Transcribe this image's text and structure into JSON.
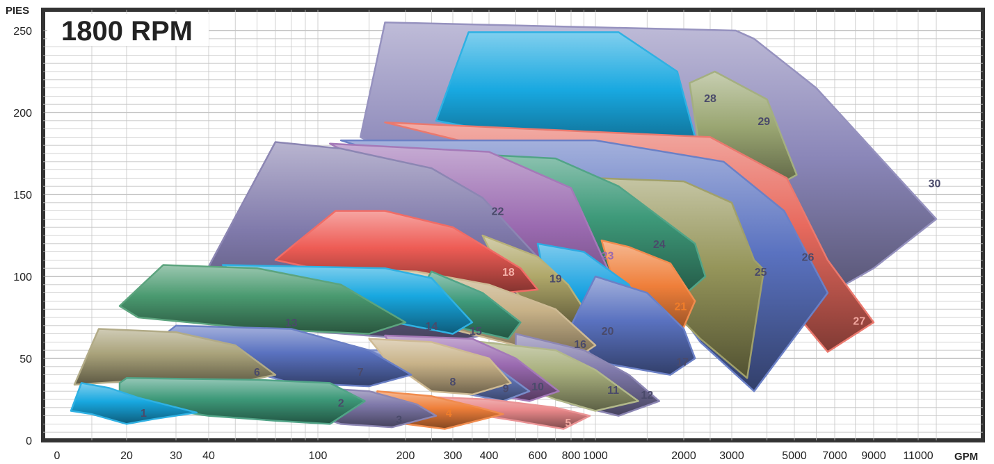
{
  "title": "1800 RPM",
  "chart_data": {
    "type": "area",
    "title": "1800 RPM",
    "ylabel": "PIES",
    "xlabel": "GPM",
    "ylim": [
      0,
      255
    ],
    "grid": true,
    "x_ticks": [
      {
        "label": "0"
      },
      {
        "label": "20"
      },
      {
        "label": "30"
      },
      {
        "label": "40"
      },
      {
        "label": "100"
      },
      {
        "label": "200"
      },
      {
        "label": "300"
      },
      {
        "label": "400"
      },
      {
        "label": "600"
      },
      {
        "label": "800"
      },
      {
        "label": "1000"
      },
      {
        "label": "2000"
      },
      {
        "label": "3000"
      },
      {
        "label": "5000"
      },
      {
        "label": "7000"
      },
      {
        "label": "9000"
      },
      {
        "label": "11000"
      }
    ],
    "y_ticks": [
      0,
      50,
      100,
      150,
      200,
      250
    ],
    "series": [
      {
        "name": "30",
        "color": "#8a86b8",
        "label_pos": [
          11900,
          157
        ],
        "points": [
          [
            140,
            185
          ],
          [
            170,
            255
          ],
          [
            3100,
            250
          ],
          [
            3600,
            245
          ],
          [
            6000,
            215
          ],
          [
            12000,
            135
          ],
          [
            9000,
            105
          ],
          [
            6000,
            85
          ],
          [
            3500,
            70
          ]
        ]
      },
      {
        "name": "29",
        "color": "#9aa672",
        "label_pos": [
          3900,
          195
        ],
        "points": [
          [
            2100,
            218
          ],
          [
            2600,
            225
          ],
          [
            4000,
            208
          ],
          [
            5100,
            162
          ],
          [
            3800,
            150
          ],
          [
            2300,
            175
          ]
        ]
      },
      {
        "name": "28",
        "color": "#18a8e0",
        "label_pos": [
          2500,
          209
        ],
        "points": [
          [
            260,
            195
          ],
          [
            340,
            249
          ],
          [
            1200,
            249
          ],
          [
            1900,
            225
          ],
          [
            2200,
            185
          ],
          [
            1600,
            170
          ]
        ]
      },
      {
        "name": "27",
        "color": "#e86a5e",
        "label_pos": [
          8200,
          73
        ],
        "points": [
          [
            170,
            194
          ],
          [
            2500,
            185
          ],
          [
            4700,
            160
          ],
          [
            6600,
            110
          ],
          [
            9000,
            72
          ],
          [
            6600,
            54
          ],
          [
            5500,
            70
          ],
          [
            4000,
            100
          ],
          [
            1500,
            155
          ]
        ]
      },
      {
        "name": "26",
        "color": "#5a72c0",
        "label_pos": [
          5600,
          112
        ],
        "points": [
          [
            120,
            183
          ],
          [
            1000,
            183
          ],
          [
            2800,
            170
          ],
          [
            4600,
            140
          ],
          [
            6600,
            90
          ],
          [
            3600,
            30
          ],
          [
            2300,
            60
          ],
          [
            1200,
            130
          ]
        ]
      },
      {
        "name": "25",
        "color": "#95955a",
        "label_pos": [
          3800,
          103
        ],
        "points": [
          [
            1000,
            160
          ],
          [
            2000,
            158
          ],
          [
            3000,
            145
          ],
          [
            3600,
            110
          ],
          [
            3900,
            104
          ],
          [
            3400,
            38
          ],
          [
            2300,
            62
          ],
          [
            1500,
            95
          ]
        ]
      },
      {
        "name": "24",
        "color": "#3e9a7a",
        "label_pos": [
          1650,
          120
        ],
        "points": [
          [
            140,
            178
          ],
          [
            700,
            172
          ],
          [
            1200,
            155
          ],
          [
            2200,
            120
          ],
          [
            2400,
            100
          ],
          [
            1900,
            85
          ],
          [
            1300,
            90
          ],
          [
            700,
            135
          ]
        ]
      },
      {
        "name": "23",
        "color": "#9a6ab0",
        "label_pos": [
          1100,
          113
        ],
        "points": [
          [
            110,
            181
          ],
          [
            400,
            176
          ],
          [
            800,
            154
          ],
          [
            1200,
            90
          ],
          [
            1000,
            68
          ],
          [
            700,
            90
          ],
          [
            400,
            130
          ]
        ]
      },
      {
        "name": "22",
        "color": "#7f79aa",
        "label_pos": [
          430,
          140
        ],
        "points": [
          [
            40,
            106
          ],
          [
            70,
            182
          ],
          [
            120,
            178
          ],
          [
            250,
            166
          ],
          [
            380,
            148
          ],
          [
            700,
            100
          ],
          [
            600,
            72
          ],
          [
            300,
            60
          ],
          [
            50,
            70
          ]
        ]
      },
      {
        "name": "21",
        "color": "#ef7f3a",
        "label_pos": [
          1950,
          82
        ],
        "points": [
          [
            1050,
            122
          ],
          [
            1300,
            118
          ],
          [
            1800,
            108
          ],
          [
            2200,
            85
          ],
          [
            1900,
            60
          ],
          [
            1300,
            65
          ]
        ]
      },
      {
        "name": "20",
        "color": "#14a0e0",
        "label_pos": [
          1100,
          67
        ],
        "points": [
          [
            600,
            120
          ],
          [
            900,
            115
          ],
          [
            1300,
            95
          ],
          [
            1500,
            70
          ],
          [
            1200,
            50
          ],
          [
            900,
            60
          ],
          [
            650,
            90
          ]
        ]
      },
      {
        "name": "19",
        "color": "#b0a86a",
        "label_pos": [
          700,
          99
        ],
        "points": [
          [
            380,
            125
          ],
          [
            600,
            112
          ],
          [
            780,
            95
          ],
          [
            900,
            80
          ],
          [
            800,
            70
          ],
          [
            600,
            75
          ],
          [
            450,
            100
          ]
        ]
      },
      {
        "name": "18",
        "color": "#ee5c55",
        "label_pos": [
          470,
          103
        ],
        "points": [
          [
            80,
            118
          ],
          [
            115,
            140
          ],
          [
            170,
            140
          ],
          [
            300,
            130
          ],
          [
            520,
            105
          ],
          [
            600,
            92
          ],
          [
            450,
            90
          ],
          [
            180,
            95
          ],
          [
            70,
            110
          ]
        ]
      },
      {
        "name": "17",
        "color": "#5a72c0",
        "label_pos": [
          1980,
          48
        ],
        "points": [
          [
            1000,
            100
          ],
          [
            1500,
            90
          ],
          [
            2000,
            68
          ],
          [
            2200,
            50
          ],
          [
            1800,
            40
          ],
          [
            1000,
            48
          ],
          [
            800,
            70
          ]
        ]
      },
      {
        "name": "16",
        "color": "#c8b288",
        "label_pos": [
          870,
          59
        ],
        "points": [
          [
            100,
            105
          ],
          [
            220,
            103
          ],
          [
            400,
            95
          ],
          [
            700,
            80
          ],
          [
            1000,
            58
          ],
          [
            800,
            48
          ],
          [
            500,
            58
          ],
          [
            200,
            75
          ]
        ]
      },
      {
        "name": "15",
        "color": "#3e9a7a",
        "label_pos": [
          360,
          67
        ],
        "points": [
          [
            250,
            103
          ],
          [
            380,
            90
          ],
          [
            520,
            72
          ],
          [
            470,
            62
          ],
          [
            330,
            68
          ],
          [
            220,
            88
          ]
        ]
      },
      {
        "name": "14",
        "color": "#18a8e0",
        "label_pos": [
          250,
          70
        ],
        "points": [
          [
            45,
            107
          ],
          [
            170,
            105
          ],
          [
            250,
            99
          ],
          [
            350,
            72
          ],
          [
            300,
            65
          ],
          [
            150,
            75
          ],
          [
            60,
            95
          ]
        ]
      },
      {
        "name": "13",
        "color": "#4a9a70",
        "label_pos": [
          80,
          72
        ],
        "points": [
          [
            18,
            82
          ],
          [
            27,
            107
          ],
          [
            60,
            105
          ],
          [
            120,
            95
          ],
          [
            200,
            72
          ],
          [
            150,
            65
          ],
          [
            60,
            68
          ],
          [
            22,
            75
          ]
        ]
      },
      {
        "name": "12",
        "color": "#7f79aa",
        "label_pos": [
          1500,
          28
        ],
        "points": [
          [
            500,
            65
          ],
          [
            900,
            55
          ],
          [
            1300,
            40
          ],
          [
            1650,
            24
          ],
          [
            1200,
            15
          ],
          [
            800,
            22
          ],
          [
            500,
            35
          ]
        ]
      },
      {
        "name": "11",
        "color": "#a9b07e",
        "label_pos": [
          1150,
          31
        ],
        "points": [
          [
            300,
            62
          ],
          [
            700,
            55
          ],
          [
            1000,
            43
          ],
          [
            1400,
            24
          ],
          [
            1000,
            18
          ],
          [
            700,
            25
          ],
          [
            400,
            40
          ]
        ]
      },
      {
        "name": "10",
        "color": "#9a6ab0",
        "label_pos": [
          600,
          33
        ],
        "points": [
          [
            170,
            64
          ],
          [
            350,
            62
          ],
          [
            500,
            50
          ],
          [
            720,
            30
          ],
          [
            560,
            24
          ],
          [
            350,
            30
          ],
          [
            200,
            40
          ]
        ]
      },
      {
        "name": "9",
        "color": "#6a7fc4",
        "label_pos": [
          460,
          32
        ],
        "points": [
          [
            150,
            55
          ],
          [
            300,
            55
          ],
          [
            400,
            48
          ],
          [
            560,
            30
          ],
          [
            450,
            24
          ],
          [
            300,
            30
          ],
          [
            200,
            45
          ]
        ]
      },
      {
        "name": "8",
        "color": "#c8b288",
        "label_pos": [
          300,
          36
        ],
        "points": [
          [
            150,
            62
          ],
          [
            250,
            60
          ],
          [
            400,
            50
          ],
          [
            480,
            35
          ],
          [
            350,
            28
          ],
          [
            250,
            30
          ],
          [
            170,
            50
          ]
        ]
      },
      {
        "name": "7",
        "color": "#5a72c0",
        "label_pos": [
          140,
          42
        ],
        "points": [
          [
            28,
            66
          ],
          [
            30,
            70
          ],
          [
            80,
            68
          ],
          [
            150,
            55
          ],
          [
            210,
            40
          ],
          [
            150,
            33
          ],
          [
            80,
            35
          ],
          [
            30,
            55
          ]
        ]
      },
      {
        "name": "6",
        "color": "#a9a27a",
        "label_pos": [
          60,
          42
        ],
        "points": [
          [
            5,
            34
          ],
          [
            12,
            68
          ],
          [
            30,
            66
          ],
          [
            50,
            58
          ],
          [
            70,
            40
          ],
          [
            50,
            35
          ],
          [
            20,
            36
          ]
        ]
      },
      {
        "name": "5",
        "color": "#e9888a",
        "label_pos": [
          780,
          11
        ],
        "points": [
          [
            150,
            28
          ],
          [
            400,
            25
          ],
          [
            700,
            20
          ],
          [
            950,
            15
          ],
          [
            750,
            7
          ],
          [
            500,
            12
          ],
          [
            250,
            20
          ]
        ]
      },
      {
        "name": "4",
        "color": "#ef7f3a",
        "label_pos": [
          290,
          17
        ],
        "points": [
          [
            160,
            30
          ],
          [
            250,
            27
          ],
          [
            370,
            20
          ],
          [
            450,
            16
          ],
          [
            280,
            7
          ],
          [
            200,
            10
          ],
          [
            160,
            20
          ]
        ]
      },
      {
        "name": "3",
        "color": "#7f79aa",
        "label_pos": [
          190,
          13
        ],
        "points": [
          [
            80,
            33
          ],
          [
            150,
            30
          ],
          [
            220,
            22
          ],
          [
            260,
            15
          ],
          [
            180,
            8
          ],
          [
            120,
            10
          ],
          [
            80,
            20
          ]
        ]
      },
      {
        "name": "2",
        "color": "#3e9a7a",
        "label_pos": [
          120,
          23
        ],
        "points": [
          [
            18,
            35
          ],
          [
            20,
            38
          ],
          [
            60,
            37
          ],
          [
            110,
            35
          ],
          [
            145,
            24
          ],
          [
            110,
            10
          ],
          [
            70,
            12
          ],
          [
            40,
            15
          ],
          [
            18,
            23
          ]
        ]
      },
      {
        "name": "1",
        "color": "#18a8e0",
        "label_pos": [
          23,
          17
        ],
        "points": [
          [
            4,
            18
          ],
          [
            7,
            35
          ],
          [
            15,
            32
          ],
          [
            22,
            26
          ],
          [
            36,
            17
          ],
          [
            25,
            13
          ],
          [
            20,
            10
          ],
          [
            10,
            16
          ]
        ]
      }
    ],
    "label_colors": {
      "default": "#4a4a6a",
      "18": "#f4b0a8",
      "21": "#f07d2a",
      "23": "#9a6ab0",
      "27": "#f2a8a0",
      "4": "#f07d2a",
      "5": "#f2a8a0"
    }
  }
}
